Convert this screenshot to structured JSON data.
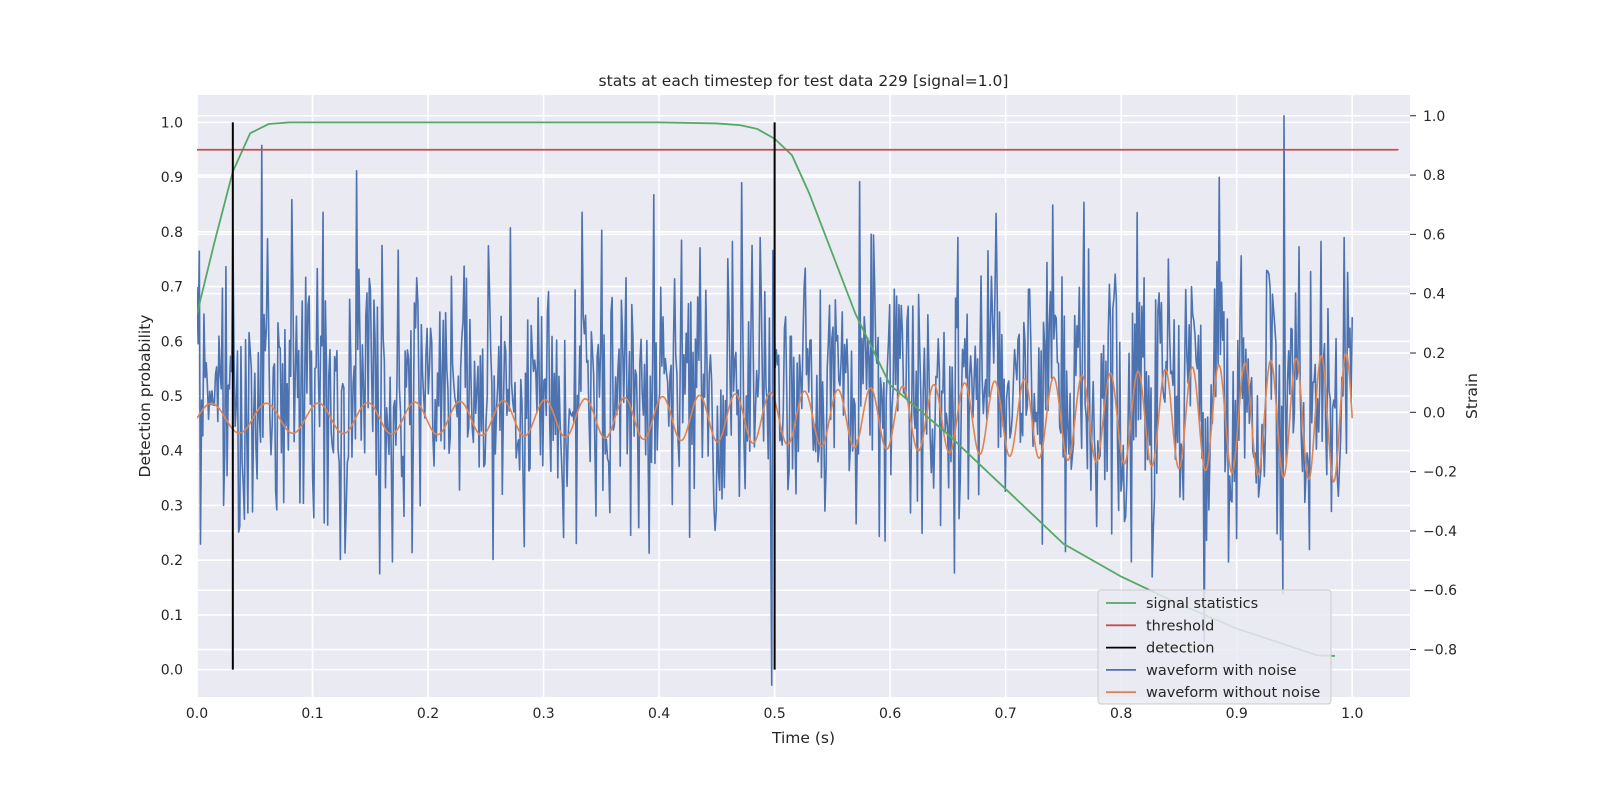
{
  "chart_data": {
    "type": "line",
    "title": "stats at each timestep for test data 229 [signal=1.0]",
    "xlabel": "Time (s)",
    "ylabel": "Detection probability",
    "y2label": "Strain",
    "xlim": [
      0.0,
      1.05
    ],
    "ylim": [
      -0.05,
      1.05
    ],
    "y2lim": [
      -0.96,
      1.07
    ],
    "grid": true,
    "legend_position": "lower-right",
    "x_ticks": [
      "0.0",
      "0.1",
      "0.2",
      "0.3",
      "0.4",
      "0.5",
      "0.6",
      "0.7",
      "0.8",
      "0.9",
      "1.0"
    ],
    "y_ticks": [
      "0.0",
      "0.1",
      "0.2",
      "0.3",
      "0.4",
      "0.5",
      "0.6",
      "0.7",
      "0.8",
      "0.9",
      "1.0"
    ],
    "y2_ticks": [
      "−0.8",
      "−0.6",
      "−0.4",
      "−0.2",
      "0.0",
      "0.2",
      "0.4",
      "0.6",
      "0.8",
      "1.0"
    ],
    "legend": [
      {
        "label": "signal statistics",
        "color": "#55a868"
      },
      {
        "label": "threshold",
        "color": "#c44e52"
      },
      {
        "label": "detection",
        "color": "#000000"
      },
      {
        "label": "waveform with noise",
        "color": "#4c72b0"
      },
      {
        "label": "waveform without noise",
        "color": "#dd8452"
      }
    ],
    "series": [
      {
        "name": "signal statistics",
        "axis": "left",
        "color": "#55a868",
        "x": [
          0.0,
          0.015,
          0.031,
          0.046,
          0.062,
          0.08,
          0.1,
          0.2,
          0.3,
          0.4,
          0.45,
          0.47,
          0.485,
          0.5,
          0.515,
          0.53,
          0.55,
          0.57,
          0.6,
          0.65,
          0.7,
          0.75,
          0.8,
          0.85,
          0.9,
          0.95,
          0.97,
          0.985
        ],
        "y": [
          0.65,
          0.78,
          0.91,
          0.98,
          0.997,
          1.0,
          1.0,
          1.0,
          1.0,
          1.0,
          0.998,
          0.995,
          0.988,
          0.97,
          0.94,
          0.87,
          0.76,
          0.65,
          0.52,
          0.43,
          0.33,
          0.23,
          0.17,
          0.12,
          0.075,
          0.04,
          0.026,
          0.025
        ]
      },
      {
        "name": "threshold",
        "axis": "left",
        "color": "#c44e52",
        "x": [
          0.0,
          1.04
        ],
        "y": [
          0.95,
          0.95
        ]
      }
    ],
    "detections": [
      {
        "x": 0.031,
        "y_range": [
          0.0,
          1.0
        ]
      },
      {
        "x": 0.5,
        "y_range": [
          0.0,
          1.0
        ]
      }
    ],
    "waveform_with_noise": {
      "name": "waveform with noise",
      "axis": "right",
      "color": "#4c72b0",
      "x_range": [
        0.0,
        1.0
      ],
      "samples": 1000,
      "noise_std": 0.24,
      "y_min": -0.92,
      "y_max": 1.0
    },
    "waveform_without_noise": {
      "name": "waveform without noise",
      "axis": "right",
      "color": "#dd8452",
      "x_range": [
        0.0,
        1.0
      ],
      "amplitude_start": 0.05,
      "amplitude_end": 0.22,
      "frequency_start_hz": 20,
      "frequency_end_hz": 47
    }
  }
}
